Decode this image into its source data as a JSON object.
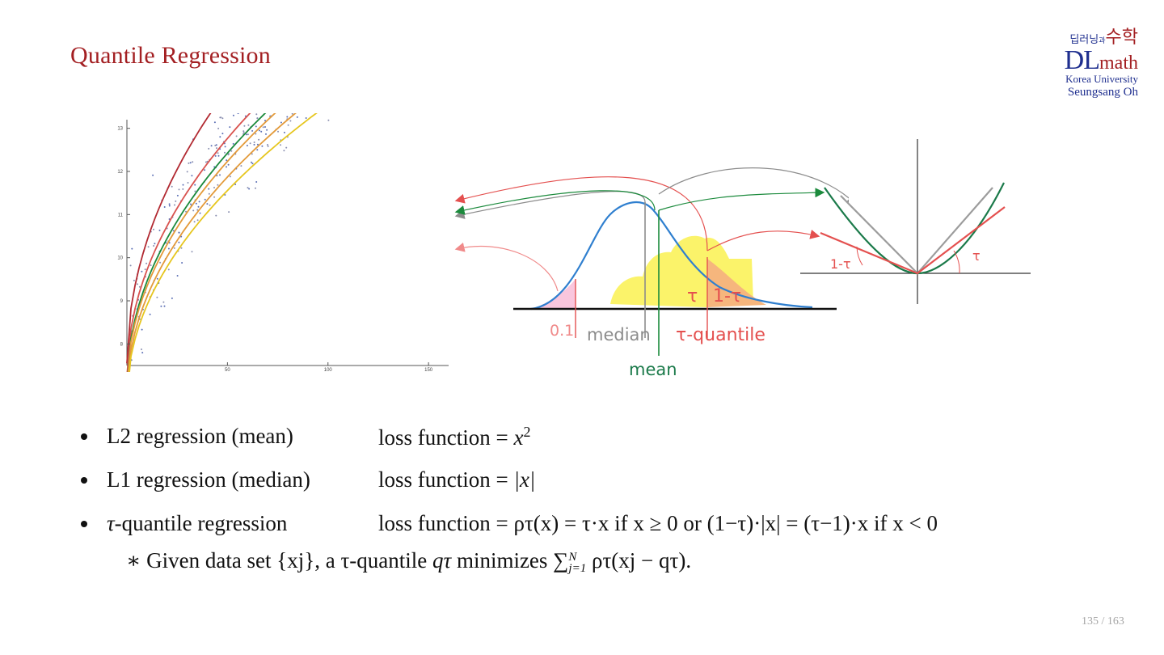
{
  "slide": {
    "title": "Quantile Regression",
    "page_number": "135 / 163"
  },
  "logo": {
    "korean_left": "딥러닝",
    "korean_connector": "과",
    "korean_right": "수학",
    "dl": "DL",
    "math": "math",
    "university": "Korea University",
    "author": "Seungsang Oh"
  },
  "colors": {
    "title": "#a31f22",
    "logo_blue": "#1f2f8f",
    "curve_dark_red": "#b22a32",
    "curve_red": "#d9534f",
    "curve_green": "#1b8a3c",
    "curve_orange": "#e39a3a",
    "curve_yellow": "#e6c61f",
    "dist_blue": "#2f7fcf",
    "fill_pink": "#f9c6dd",
    "fill_yellow": "#fbf36a",
    "fill_orange": "#f6b67d",
    "label_red": "#e4504f",
    "label_gray": "#8c8c8c",
    "label_green": "#1b7a4a"
  },
  "chart_data": {
    "type": "scatter",
    "x_ticks": [
      "50",
      "100",
      "150"
    ],
    "y_ticks": [
      "8",
      "9",
      "10",
      "11",
      "12",
      "13"
    ],
    "xlim": [
      0,
      160
    ],
    "ylim": [
      7.5,
      13.2
    ],
    "series": [
      {
        "color": "#b22a32",
        "a": 7.55,
        "b": 0.9
      },
      {
        "color": "#d9534f",
        "a": 7.25,
        "b": 0.78
      },
      {
        "color": "#1b8a3c",
        "a": 7.05,
        "b": 0.76
      },
      {
        "color": "#e39a3a",
        "a": 7.0,
        "b": 0.74
      },
      {
        "color": "#e39a3a",
        "a": 6.85,
        "b": 0.71
      },
      {
        "color": "#e6c61f",
        "a": 6.75,
        "b": 0.68
      }
    ]
  },
  "distribution": {
    "label_01": "0.1",
    "label_median": "median",
    "label_quantile": "τ-quantile",
    "label_mean": "mean",
    "label_tau": "τ",
    "label_one_minus_tau": "1-τ"
  },
  "loss_plot": {
    "label_left": "1-τ",
    "label_right": "τ"
  },
  "bullets": [
    {
      "text": "L2 regression  (mean)",
      "formula_prefix": "loss function = ",
      "formula_var": "x",
      "formula_sup": "2"
    },
    {
      "text": "L1 regression  (median)",
      "formula_prefix": "loss function = ",
      "formula_var": "|x|"
    }
  ],
  "bullet3": {
    "tau": "τ",
    "text": "-quantile regression",
    "formula": "loss function = ρτ(x) = τ·x  if x ≥ 0  or  (1−τ)·|x| = (τ−1)·x  if x < 0"
  },
  "note": {
    "prefix": "∗ Given data set {xj},  a τ-quantile ",
    "q": "qτ",
    "middle": "  minimizes  ",
    "sum": "∑",
    "sum_upper": "N",
    "sum_lower": "j=1",
    "suffix": " ρτ(xj − qτ)."
  }
}
